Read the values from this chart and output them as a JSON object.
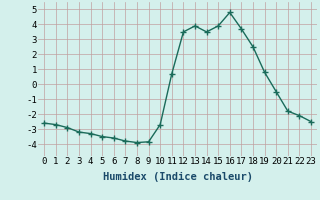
{
  "x": [
    0,
    1,
    2,
    3,
    4,
    5,
    6,
    7,
    8,
    9,
    10,
    11,
    12,
    13,
    14,
    15,
    16,
    17,
    18,
    19,
    20,
    21,
    22,
    23
  ],
  "y": [
    -2.6,
    -2.7,
    -2.9,
    -3.2,
    -3.3,
    -3.5,
    -3.6,
    -3.8,
    -3.9,
    -3.85,
    -2.7,
    0.7,
    3.5,
    3.9,
    3.5,
    3.9,
    4.8,
    3.7,
    2.5,
    0.8,
    -0.5,
    -1.8,
    -2.1,
    -2.5
  ],
  "line_color": "#1a6b5a",
  "marker": "+",
  "marker_size": 4,
  "marker_lw": 1.0,
  "line_width": 1.0,
  "bg_color": "#d4f0ec",
  "grid_color": "#c0a0a0",
  "xlabel": "Humidex (Indice chaleur)",
  "xlabel_color": "#1a4a6a",
  "ylim": [
    -4.8,
    5.5
  ],
  "xlim": [
    -0.5,
    23.5
  ],
  "yticks": [
    -4,
    -3,
    -2,
    -1,
    0,
    1,
    2,
    3,
    4,
    5
  ],
  "xticks": [
    0,
    1,
    2,
    3,
    4,
    5,
    6,
    7,
    8,
    9,
    10,
    11,
    12,
    13,
    14,
    15,
    16,
    17,
    18,
    19,
    20,
    21,
    22,
    23
  ],
  "tick_font_size": 6.5,
  "label_font_size": 7.5
}
